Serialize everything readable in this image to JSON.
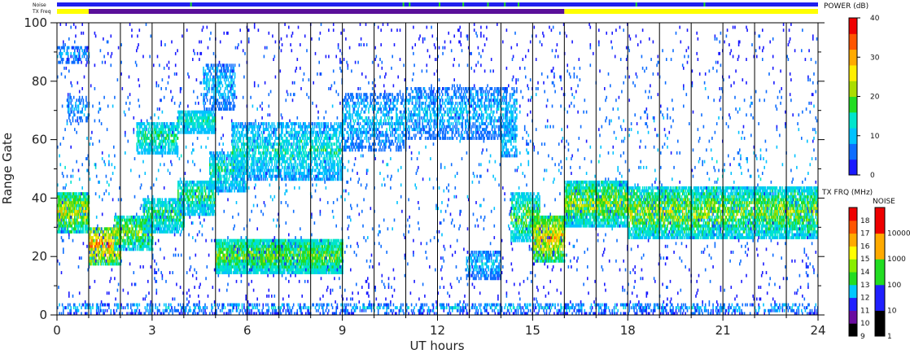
{
  "chart_data": {
    "type": "heatmap",
    "xlabel": "UT hours",
    "ylabel": "Range Gate",
    "xlim": [
      0,
      24
    ],
    "ylim": [
      0,
      100
    ],
    "x_ticks": [
      0,
      3,
      6,
      9,
      12,
      15,
      18,
      21,
      24
    ],
    "y_ticks": [
      0,
      20,
      40,
      60,
      80,
      100
    ],
    "grid_vertical_hours": [
      1,
      2,
      3,
      4,
      5,
      6,
      7,
      8,
      9,
      10,
      11,
      12,
      13,
      14,
      15,
      16,
      17,
      18,
      19,
      20,
      21,
      22,
      23
    ],
    "top_bars": {
      "noise_label": "Noise",
      "txfreq_label": "TX Freq",
      "txfreq_segments": [
        {
          "start": 0,
          "end": 1,
          "color": "#ffff00"
        },
        {
          "start": 1,
          "end": 16,
          "color": "#5a0f9a"
        },
        {
          "start": 16,
          "end": 24,
          "color": "#ffff00"
        }
      ]
    },
    "power_colorbar": {
      "label": "POWER (dB)",
      "ticks": [
        0,
        10,
        20,
        30,
        40
      ],
      "colors": [
        "#1a1aff",
        "#0d6dff",
        "#00c2ff",
        "#00e5cc",
        "#22dd22",
        "#aadd00",
        "#ffee00",
        "#ffaa00",
        "#ff5500",
        "#ee0000"
      ]
    },
    "txfrq_colorbar": {
      "label": "TX FRQ (MHz)",
      "ticks": [
        "9",
        "10",
        "11",
        "12",
        "13",
        "14",
        "15",
        "16",
        "17",
        "18"
      ],
      "colors": [
        "#000000",
        "#6a0ca0",
        "#2020ff",
        "#00c8ff",
        "#22dd22",
        "#88ee00",
        "#ffff00",
        "#ffaa00",
        "#ff5500",
        "#ee0000"
      ]
    },
    "noise_colorbar": {
      "label": "NOISE",
      "ticks": [
        "1",
        "10",
        "100",
        "1000",
        "10000"
      ],
      "colors": [
        "#000000",
        "#2020ff",
        "#22dd22",
        "#ffaa00",
        "#ee0000"
      ]
    },
    "regions": [
      {
        "t0": 0.0,
        "t1": 1.0,
        "g0": 28,
        "g1": 42,
        "pmin": 10,
        "pmax": 30,
        "density": 0.85
      },
      {
        "t0": 0.0,
        "t1": 1.0,
        "g0": 86,
        "g1": 92,
        "pmin": 4,
        "pmax": 12,
        "density": 0.4
      },
      {
        "t0": 0.3,
        "t1": 1.0,
        "g0": 66,
        "g1": 75,
        "pmin": 4,
        "pmax": 12,
        "density": 0.35
      },
      {
        "t0": 1.0,
        "t1": 2.0,
        "g0": 17,
        "g1": 30,
        "pmin": 12,
        "pmax": 38,
        "density": 0.85
      },
      {
        "t0": 1.8,
        "t1": 3.0,
        "g0": 22,
        "g1": 34,
        "pmin": 10,
        "pmax": 26,
        "density": 0.8
      },
      {
        "t0": 2.7,
        "t1": 4.0,
        "g0": 28,
        "g1": 40,
        "pmin": 8,
        "pmax": 22,
        "density": 0.75
      },
      {
        "t0": 3.8,
        "t1": 5.0,
        "g0": 34,
        "g1": 46,
        "pmin": 8,
        "pmax": 22,
        "density": 0.75
      },
      {
        "t0": 4.8,
        "t1": 6.0,
        "g0": 42,
        "g1": 56,
        "pmin": 6,
        "pmax": 20,
        "density": 0.7
      },
      {
        "t0": 2.5,
        "t1": 3.8,
        "g0": 55,
        "g1": 66,
        "pmin": 8,
        "pmax": 20,
        "density": 0.7
      },
      {
        "t0": 3.8,
        "t1": 5.0,
        "g0": 62,
        "g1": 70,
        "pmin": 8,
        "pmax": 18,
        "density": 0.8
      },
      {
        "t0": 4.6,
        "t1": 5.6,
        "g0": 70,
        "g1": 86,
        "pmin": 4,
        "pmax": 14,
        "density": 0.5
      },
      {
        "t0": 5.0,
        "t1": 9.0,
        "g0": 14,
        "g1": 26,
        "pmin": 10,
        "pmax": 24,
        "density": 0.9
      },
      {
        "t0": 5.5,
        "t1": 9.0,
        "g0": 46,
        "g1": 66,
        "pmin": 6,
        "pmax": 18,
        "density": 0.6
      },
      {
        "t0": 9.0,
        "t1": 11.0,
        "g0": 56,
        "g1": 76,
        "pmin": 4,
        "pmax": 14,
        "density": 0.45
      },
      {
        "t0": 11.0,
        "t1": 14.5,
        "g0": 60,
        "g1": 78,
        "pmin": 4,
        "pmax": 14,
        "density": 0.45
      },
      {
        "t0": 14.0,
        "t1": 14.5,
        "g0": 54,
        "g1": 66,
        "pmin": 6,
        "pmax": 14,
        "density": 0.5
      },
      {
        "t0": 12.9,
        "t1": 14.0,
        "g0": 12,
        "g1": 22,
        "pmin": 4,
        "pmax": 14,
        "density": 0.6
      },
      {
        "t0": 14.3,
        "t1": 15.2,
        "g0": 25,
        "g1": 42,
        "pmin": 8,
        "pmax": 24,
        "density": 0.7
      },
      {
        "t0": 15.0,
        "t1": 16.0,
        "g0": 18,
        "g1": 34,
        "pmin": 12,
        "pmax": 34,
        "density": 0.85
      },
      {
        "t0": 16.0,
        "t1": 18.0,
        "g0": 30,
        "g1": 46,
        "pmin": 8,
        "pmax": 28,
        "density": 0.85
      },
      {
        "t0": 18.0,
        "t1": 21.0,
        "g0": 26,
        "g1": 44,
        "pmin": 8,
        "pmax": 28,
        "density": 0.8
      },
      {
        "t0": 21.0,
        "t1": 24.0,
        "g0": 26,
        "g1": 44,
        "pmin": 8,
        "pmax": 26,
        "density": 0.8
      },
      {
        "t0": 0.0,
        "t1": 24.0,
        "g0": 0,
        "g1": 4,
        "pmin": 2,
        "pmax": 14,
        "density": 0.35
      },
      {
        "t0": 0.0,
        "t1": 24.0,
        "g0": 0,
        "g1": 100,
        "pmin": 0,
        "pmax": 12,
        "density": 0.03
      }
    ]
  }
}
